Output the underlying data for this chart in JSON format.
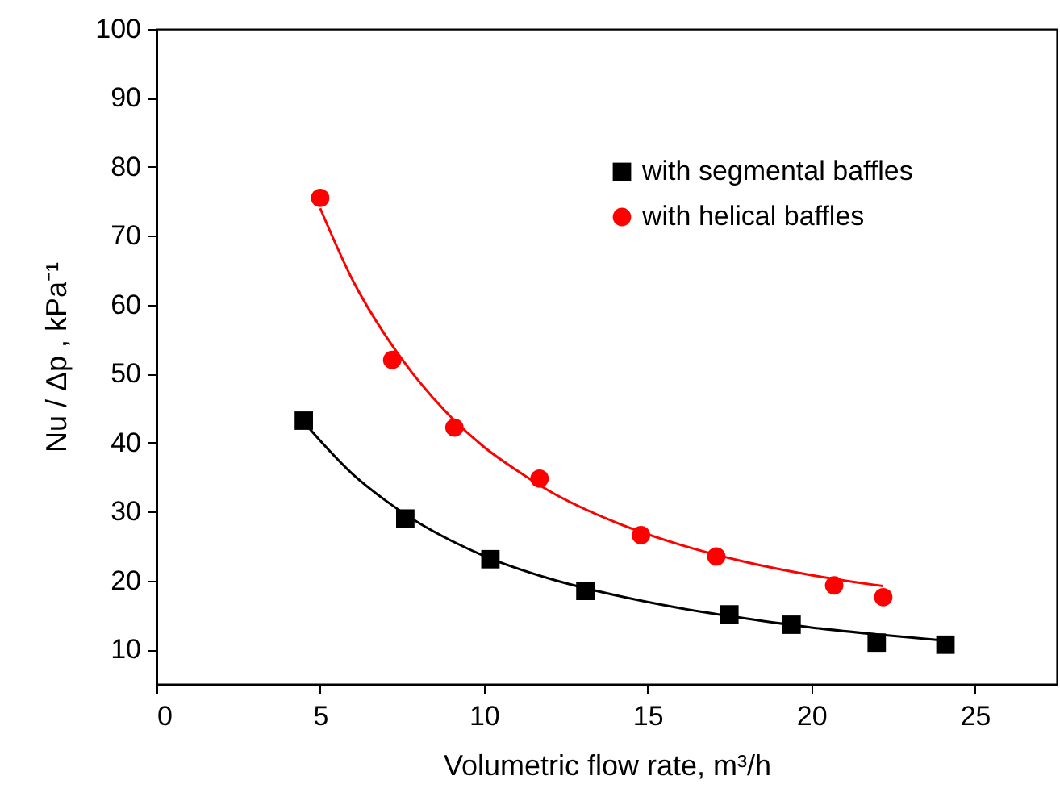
{
  "chart_data": {
    "type": "scatter",
    "xlabel": "Volumetric flow rate, m³/h",
    "ylabel": "Nu / Δp , kPa⁻¹",
    "xlim": [
      0,
      27.5
    ],
    "ylim": [
      5,
      100
    ],
    "xticks": [
      0,
      5,
      10,
      15,
      20,
      25
    ],
    "yticks": [
      10,
      20,
      30,
      40,
      50,
      60,
      70,
      80,
      90,
      100
    ],
    "grid": false,
    "legend": "top right",
    "series": [
      {
        "name": "with segmental baffles",
        "type": "scatter",
        "marker": "square",
        "color": "#000000",
        "x": [
          4.5,
          7.6,
          10.2,
          13.1,
          17.5,
          19.4,
          22,
          24.1
        ],
        "values": [
          43.2,
          29,
          23.1,
          18.5,
          15.1,
          13.6,
          11,
          10.7
        ]
      },
      {
        "name": "with helical baffles",
        "type": "scatter",
        "marker": "circle",
        "color": "#ff0000",
        "x": [
          5,
          7.2,
          9.1,
          11.7,
          14.8,
          17.1,
          20.7,
          22.2
        ],
        "values": [
          75.5,
          52,
          42.2,
          34.8,
          26.6,
          23.5,
          19.3,
          17.6
        ]
      },
      {
        "type": "line",
        "marker": "none",
        "color": "#000000",
        "x": [
          4.5,
          5,
          6,
          7,
          8,
          9,
          10,
          12,
          14,
          16,
          18,
          20,
          22,
          24.1
        ],
        "values": [
          43,
          40.3,
          35.4,
          31.6,
          28.4,
          25.8,
          23.6,
          20.3,
          17.9,
          16,
          14.5,
          13.2,
          12.2,
          11.3
        ]
      },
      {
        "type": "line",
        "marker": "none",
        "color": "#ff0000",
        "x": [
          5,
          6,
          7,
          8,
          9,
          10,
          11,
          12,
          14,
          16,
          18,
          20,
          22.2
        ],
        "values": [
          74,
          63.5,
          55.5,
          49,
          43.7,
          39.4,
          36,
          33,
          28.5,
          25.2,
          22.7,
          20.8,
          19.2
        ]
      }
    ]
  }
}
